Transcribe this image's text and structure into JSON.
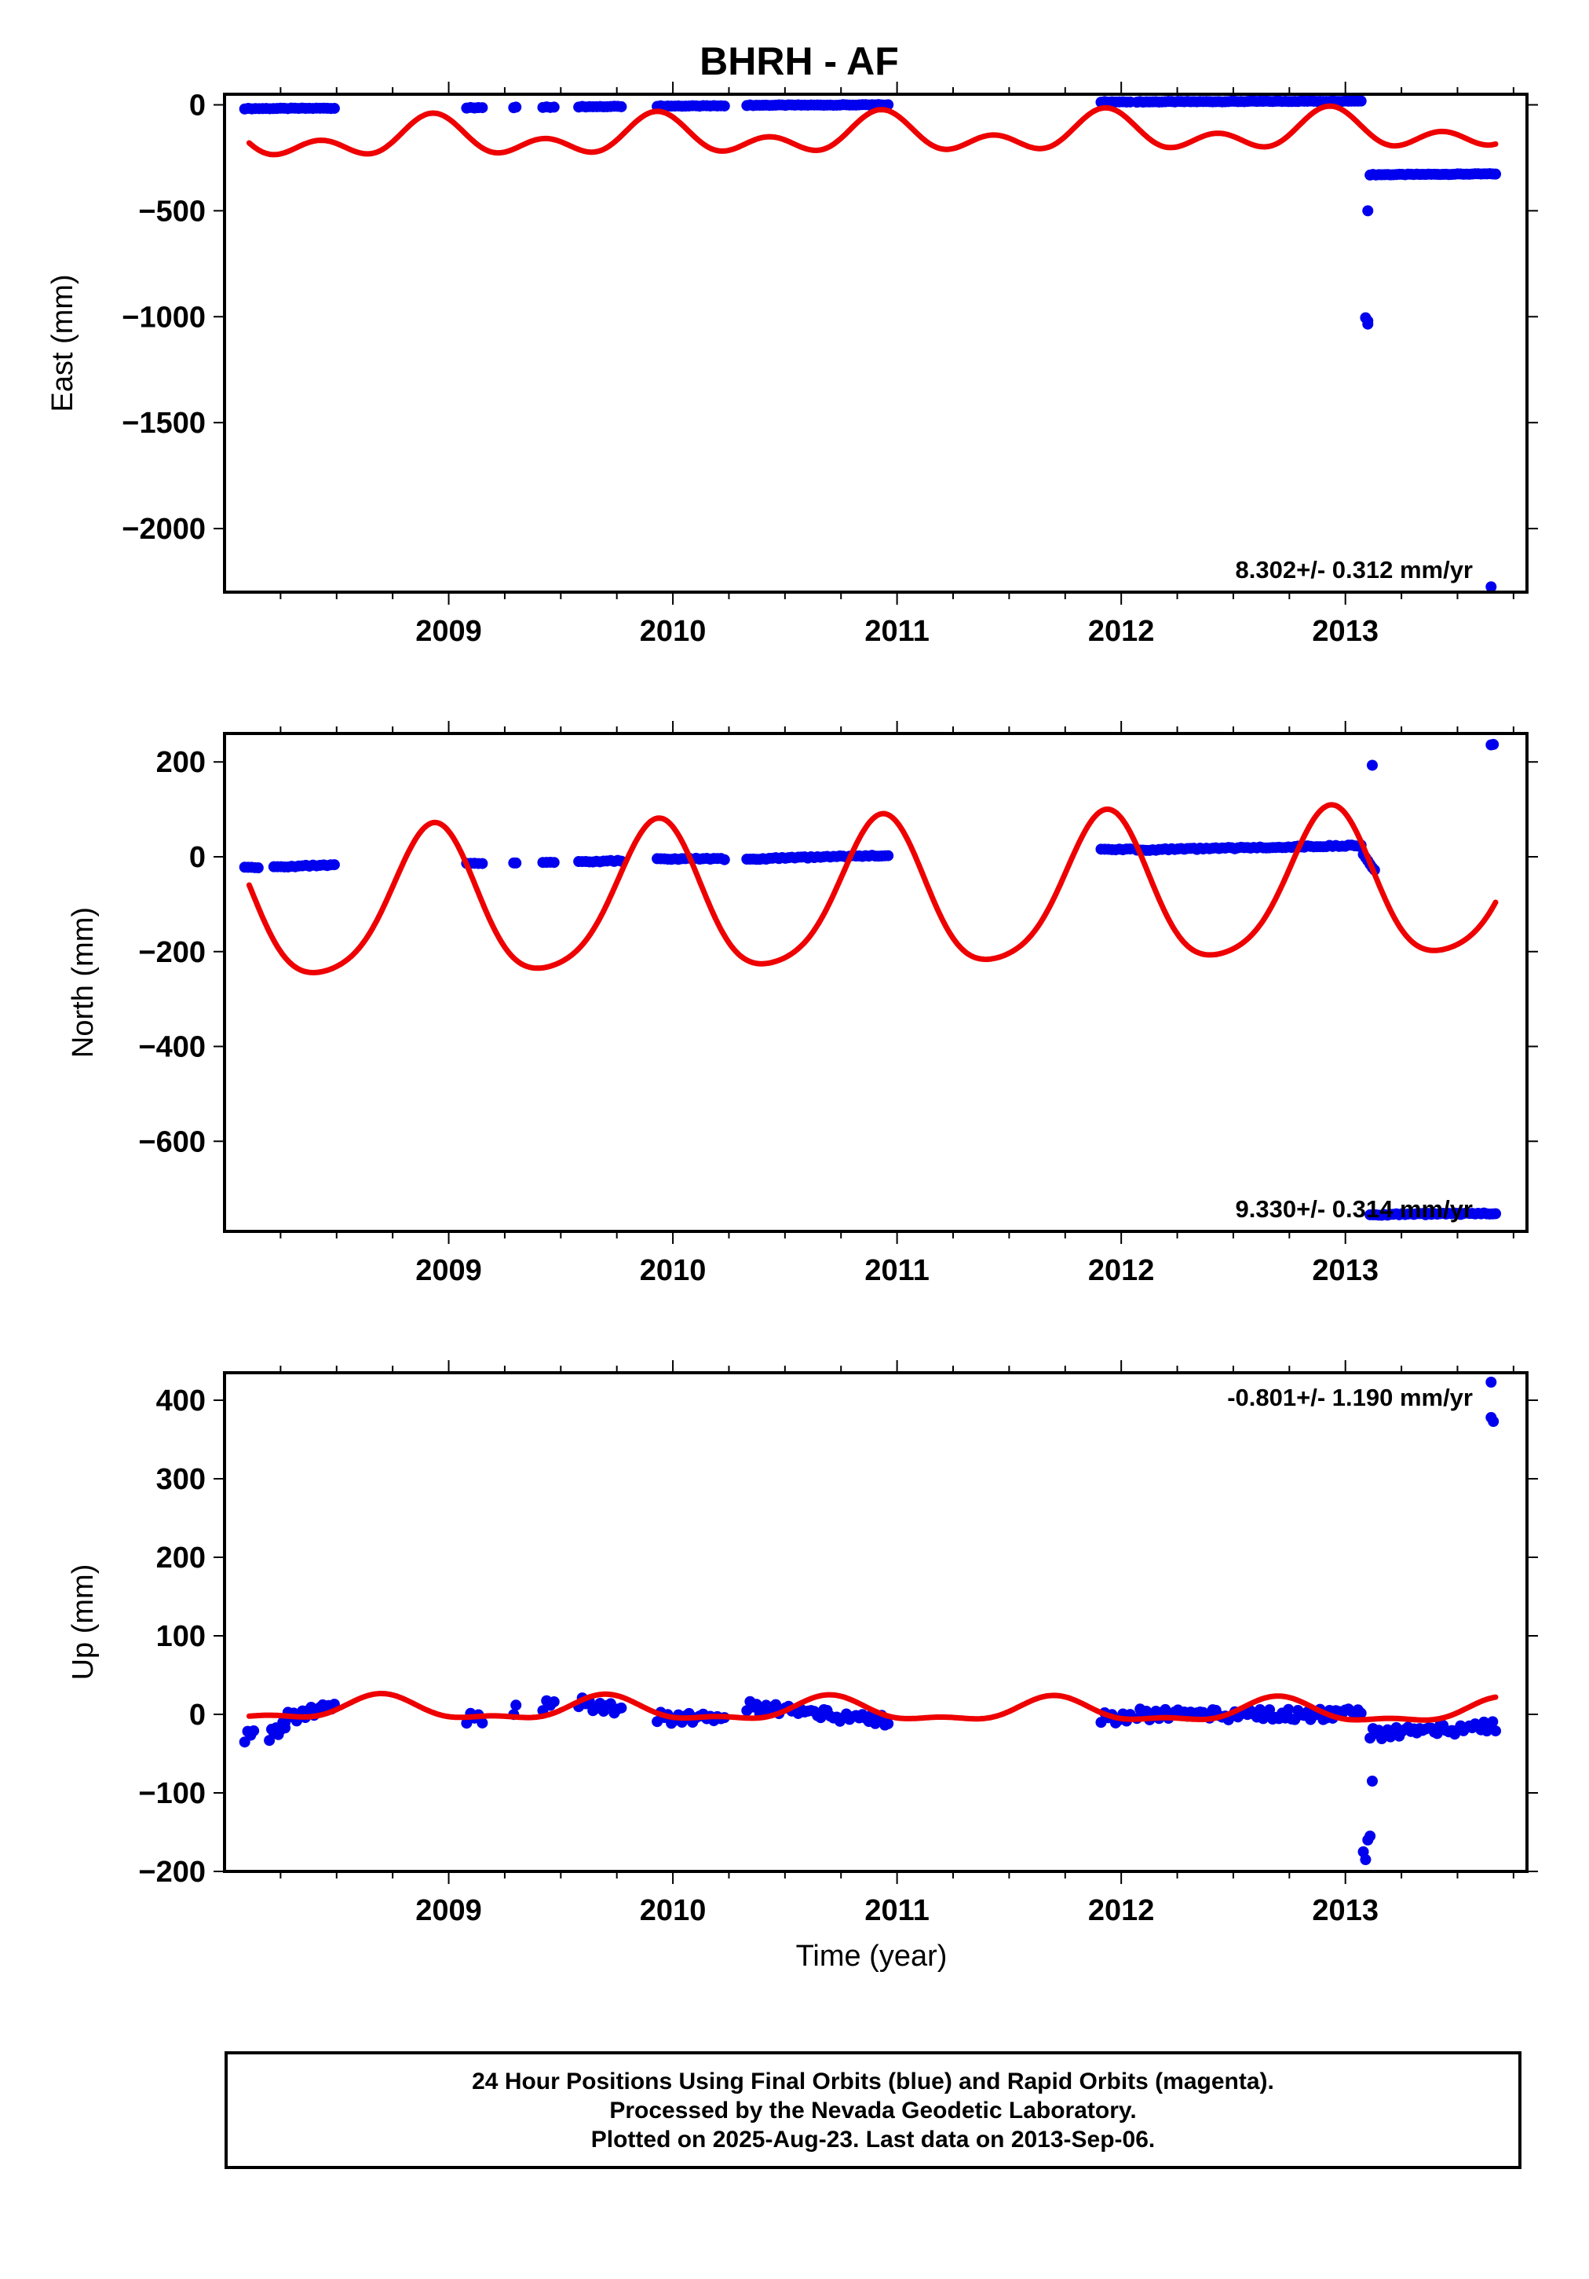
{
  "title": "BHRH - AF",
  "xlabel": "Time (year)",
  "footer": {
    "line1": "24 Hour Positions Using Final Orbits (blue) and Rapid Orbits (magenta).",
    "line2": "Processed by the Nevada Geodetic Laboratory.",
    "line3": "Plotted on 2025-Aug-23. Last data on 2013-Sep-06."
  },
  "colors": {
    "final_orbits": "#0000ee",
    "fit_curve": "#ee0000"
  },
  "chart_data": [
    {
      "type": "scatter",
      "ylabel": "East (mm)",
      "rate_label": "8.302+/- 0.312 mm/yr",
      "xlim": [
        2008.0,
        2013.81
      ],
      "ylim": [
        -2300,
        50
      ],
      "xticks": [
        "2009",
        "2010",
        "2011",
        "2012",
        "2013"
      ],
      "yticks": [
        "0",
        "−500",
        "−1000",
        "−1500",
        "−2000"
      ],
      "segments": [
        {
          "x0": 2008.09,
          "x1": 2008.49,
          "y0": -18,
          "y1": -16,
          "n": 26
        },
        {
          "x0": 2009.08,
          "x1": 2009.15,
          "y0": -14,
          "y1": -13,
          "n": 5
        },
        {
          "x0": 2009.29,
          "x1": 2009.3,
          "y0": -12,
          "y1": -12,
          "n": 2
        },
        {
          "x0": 2009.42,
          "x1": 2009.47,
          "y0": -11,
          "y1": -11,
          "n": 4
        },
        {
          "x0": 2009.58,
          "x1": 2009.77,
          "y0": -9,
          "y1": -8,
          "n": 13
        },
        {
          "x0": 2009.93,
          "x1": 2010.23,
          "y0": -6,
          "y1": -5,
          "n": 20
        },
        {
          "x0": 2010.33,
          "x1": 2010.96,
          "y0": -2,
          "y1": 0,
          "n": 45
        },
        {
          "x0": 2011.91,
          "x1": 2012.04,
          "y0": 14,
          "y1": 14,
          "n": 9
        },
        {
          "x0": 2012.07,
          "x1": 2013.07,
          "y0": 14,
          "y1": 18,
          "n": 72
        },
        {
          "x0": 2013.11,
          "x1": 2013.67,
          "y0": -330,
          "y1": -326,
          "n": 44
        }
      ],
      "points": [
        [
          2013.1,
          -500
        ],
        [
          2013.09,
          -1005
        ],
        [
          2013.1,
          -1020
        ],
        [
          2013.1,
          -1035
        ],
        [
          2013.65,
          -2275
        ]
      ],
      "fit": {
        "intercept": -168,
        "slope": 8.302,
        "annual_amp": 62,
        "annual_peak": 2008.93,
        "semi_amp": 60,
        "semi_peak": 2008.93
      }
    },
    {
      "type": "scatter",
      "ylabel": "North (mm)",
      "rate_label": "9.330+/- 0.314 mm/yr",
      "xlim": [
        2008.0,
        2013.81
      ],
      "ylim": [
        -790,
        260
      ],
      "xticks": [
        "2009",
        "2010",
        "2011",
        "2012",
        "2013"
      ],
      "yticks": [
        "200",
        "0",
        "−200",
        "−400",
        "−600"
      ],
      "segments": [
        {
          "x0": 2008.09,
          "x1": 2008.15,
          "y0": -22,
          "y1": -22,
          "n": 5
        },
        {
          "x0": 2008.22,
          "x1": 2008.49,
          "y0": -21,
          "y1": -18,
          "n": 18
        },
        {
          "x0": 2009.08,
          "x1": 2009.15,
          "y0": -14,
          "y1": -13,
          "n": 5
        },
        {
          "x0": 2009.29,
          "x1": 2009.3,
          "y0": -13,
          "y1": -13,
          "n": 2
        },
        {
          "x0": 2009.42,
          "x1": 2009.47,
          "y0": -12,
          "y1": -11,
          "n": 4
        },
        {
          "x0": 2009.58,
          "x1": 2009.77,
          "y0": -10,
          "y1": -9,
          "n": 13
        },
        {
          "x0": 2009.93,
          "x1": 2010.23,
          "y0": -4,
          "y1": -5,
          "n": 20
        },
        {
          "x0": 2010.33,
          "x1": 2010.96,
          "y0": -5,
          "y1": 3,
          "n": 45
        },
        {
          "x0": 2011.91,
          "x1": 2012.04,
          "y0": 16,
          "y1": 16,
          "n": 9
        },
        {
          "x0": 2012.07,
          "x1": 2013.07,
          "y0": 14,
          "y1": 24,
          "n": 72
        },
        {
          "x0": 2013.08,
          "x1": 2013.13,
          "y0": 5,
          "y1": -28,
          "n": 6
        },
        {
          "x0": 2013.11,
          "x1": 2013.67,
          "y0": -755,
          "y1": -752,
          "n": 44
        }
      ],
      "points": [
        [
          2013.12,
          193
        ],
        [
          2013.65,
          236
        ],
        [
          2013.66,
          237
        ]
      ],
      "fit": {
        "intercept": -115,
        "slope": 9.33,
        "annual_amp": 155,
        "annual_peak": 2008.93,
        "semi_amp": 25,
        "semi_peak": 2008.45
      }
    },
    {
      "type": "scatter",
      "ylabel": "Up (mm)",
      "rate_label": "-0.801+/- 1.190 mm/yr",
      "xlim": [
        2008.0,
        2013.81
      ],
      "ylim": [
        -200,
        435
      ],
      "xticks": [
        "2009",
        "2010",
        "2011",
        "2012",
        "2013"
      ],
      "yticks": [
        "400",
        "300",
        "200",
        "100",
        "0",
        "−100",
        "−200"
      ],
      "segments": [
        {
          "x0": 2008.09,
          "x1": 2008.13,
          "y0": -30,
          "y1": -25,
          "n": 4
        },
        {
          "x0": 2008.2,
          "x1": 2008.27,
          "y0": -28,
          "y1": -12,
          "n": 8
        },
        {
          "x0": 2008.27,
          "x1": 2008.49,
          "y0": -5,
          "y1": 10,
          "n": 18
        },
        {
          "x0": 2009.08,
          "x1": 2009.15,
          "y0": -6,
          "y1": -4,
          "n": 5
        },
        {
          "x0": 2009.29,
          "x1": 2009.3,
          "y0": 5,
          "y1": 5,
          "n": 2
        },
        {
          "x0": 2009.42,
          "x1": 2009.47,
          "y0": 10,
          "y1": 12,
          "n": 4
        },
        {
          "x0": 2009.58,
          "x1": 2009.77,
          "y0": 15,
          "y1": 5,
          "n": 13
        },
        {
          "x0": 2009.93,
          "x1": 2010.23,
          "y0": -4,
          "y1": -6,
          "n": 20
        },
        {
          "x0": 2010.33,
          "x1": 2010.96,
          "y0": 10,
          "y1": -8,
          "n": 45
        },
        {
          "x0": 2011.91,
          "x1": 2012.04,
          "y0": -5,
          "y1": -3,
          "n": 9
        },
        {
          "x0": 2012.07,
          "x1": 2013.07,
          "y0": 0,
          "y1": 0,
          "n": 72
        },
        {
          "x0": 2013.11,
          "x1": 2013.67,
          "y0": -25,
          "y1": -15,
          "n": 44
        }
      ],
      "points": [
        [
          2013.08,
          -175
        ],
        [
          2013.09,
          -185
        ],
        [
          2013.1,
          -160
        ],
        [
          2013.11,
          -155
        ],
        [
          2013.12,
          -85
        ],
        [
          2013.65,
          423
        ],
        [
          2013.65,
          378
        ],
        [
          2013.66,
          373
        ]
      ],
      "fit": {
        "intercept": 7,
        "slope": -0.801,
        "annual_amp": 14,
        "annual_peak": 2008.7,
        "semi_amp": 6,
        "semi_peak": 2008.7
      }
    }
  ]
}
